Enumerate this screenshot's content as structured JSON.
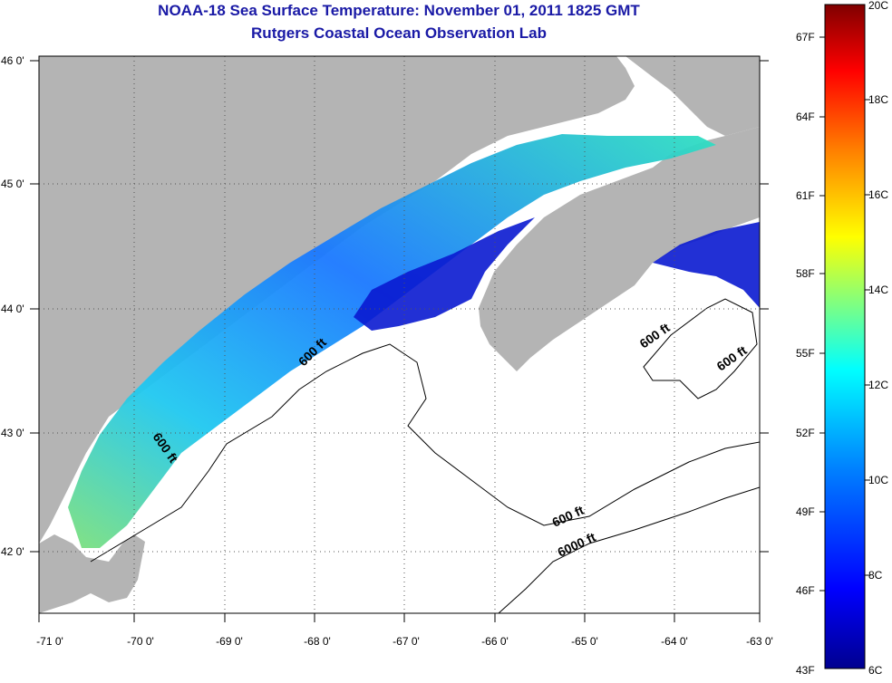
{
  "title": "NOAA-18 Sea Surface Temperature:  November 01, 2011 1825 GMT",
  "subtitle": "Rutgers Coastal Ocean Observation Lab",
  "map": {
    "lon_ticks": [
      "-71 0'",
      "-70 0'",
      "-69 0'",
      "-68 0'",
      "-67 0'",
      "-66 0'",
      "-65 0'",
      "-64 0'",
      "-63 0'"
    ],
    "lat_ticks": [
      "46 0'",
      "45 0'",
      "44 0'",
      "43 0'",
      "42 0'"
    ],
    "contour_labels": [
      "600 ft",
      "600 ft",
      "600 ft",
      "600 ft",
      "600 ft",
      "6000 ft"
    ],
    "land_color": "#b4b4b4",
    "ocean_nodata_color": "#ffffff"
  },
  "colorbar": {
    "f_labels": [
      "67F",
      "64F",
      "61F",
      "58F",
      "55F",
      "52F",
      "49F",
      "46F",
      "43F"
    ],
    "c_labels": [
      "20C",
      "18C",
      "16C",
      "14C",
      "12C",
      "10C",
      "8C",
      "6C"
    ],
    "colors": [
      "#00008f",
      "#0000ff",
      "#0080ff",
      "#00ffff",
      "#80ff80",
      "#ffff00",
      "#ff8000",
      "#ff0000",
      "#800000"
    ]
  }
}
